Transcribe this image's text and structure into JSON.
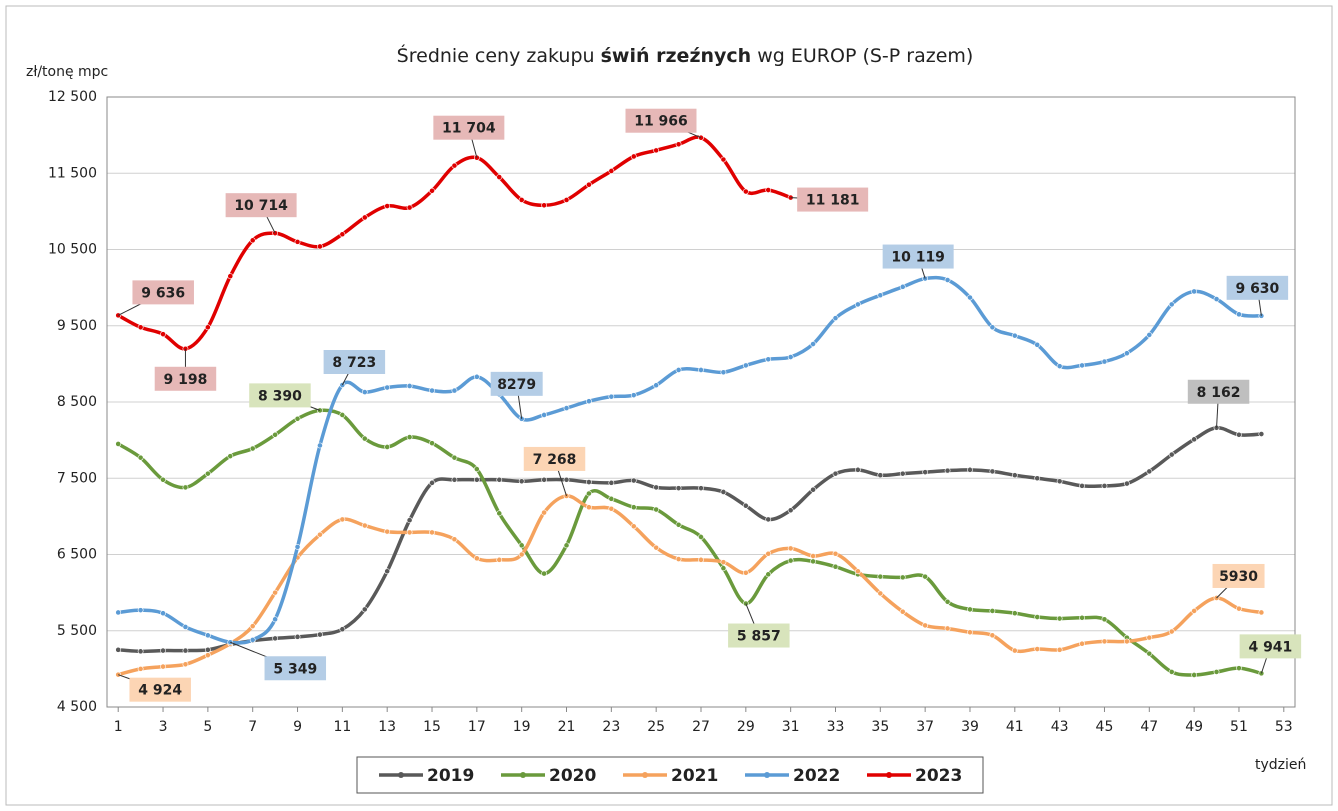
{
  "chart_data": {
    "type": "line",
    "title": [
      "Średnie ceny zakupu ",
      "świń rzeźnych",
      " wg EUROP (S-P razem)"
    ],
    "y_label": "zł/tonę mpc",
    "x_label": "tydzień",
    "x": [
      1,
      2,
      3,
      4,
      5,
      6,
      7,
      8,
      9,
      10,
      11,
      12,
      13,
      14,
      15,
      16,
      17,
      18,
      19,
      20,
      21,
      22,
      23,
      24,
      25,
      26,
      27,
      28,
      29,
      30,
      31,
      32,
      33,
      34,
      35,
      36,
      37,
      38,
      39,
      40,
      41,
      42,
      43,
      44,
      45,
      46,
      47,
      48,
      49,
      50,
      51,
      52
    ],
    "xlim": [
      0.5,
      53.5
    ],
    "xticks": [
      1,
      3,
      5,
      7,
      9,
      11,
      13,
      15,
      17,
      19,
      21,
      23,
      25,
      27,
      29,
      31,
      33,
      35,
      37,
      39,
      41,
      43,
      45,
      47,
      49,
      51,
      53
    ],
    "ylim": [
      4500,
      12500
    ],
    "yticks": [
      {
        "value": 4500,
        "label": "4 500"
      },
      {
        "value": 5500,
        "label": "5 500"
      },
      {
        "value": 6500,
        "label": "6 500"
      },
      {
        "value": 7500,
        "label": "7 500"
      },
      {
        "value": 8500,
        "label": "8 500"
      },
      {
        "value": 9500,
        "label": "9 500"
      },
      {
        "value": 10500,
        "label": "10 500"
      },
      {
        "value": 11500,
        "label": "11 500"
      },
      {
        "value": 12500,
        "label": "12 500"
      }
    ],
    "grid": true,
    "legend": "bottom",
    "series": [
      {
        "name": "2019",
        "color": "#595959",
        "label_fill": "#bfbfbf",
        "values": [
          5250,
          5230,
          5240,
          5240,
          5250,
          5320,
          5370,
          5400,
          5420,
          5450,
          5520,
          5780,
          6280,
          6950,
          7440,
          7480,
          7480,
          7480,
          7460,
          7480,
          7480,
          7450,
          7440,
          7470,
          7380,
          7370,
          7370,
          7320,
          7140,
          6960,
          7080,
          7350,
          7560,
          7610,
          7540,
          7560,
          7580,
          7600,
          7610,
          7590,
          7540,
          7500,
          7460,
          7400,
          7400,
          7430,
          7590,
          7810,
          8010,
          8162,
          8070,
          8080
        ],
        "value_labels": [
          null,
          null,
          null,
          null,
          null,
          null,
          null,
          null,
          null,
          null,
          null,
          null,
          null,
          null,
          null,
          null,
          null,
          null,
          null,
          null,
          null,
          null,
          null,
          null,
          null,
          null,
          null,
          null,
          null,
          null,
          null,
          null,
          null,
          null,
          null,
          null,
          null,
          null,
          null,
          null,
          null,
          null,
          null,
          null,
          null,
          null,
          null,
          null,
          null,
          "8 162",
          null,
          null
        ]
      },
      {
        "name": "2020",
        "color": "#6a9a3c",
        "label_fill": "#d8e4bc",
        "values": [
          7950,
          7770,
          7480,
          7380,
          7560,
          7790,
          7890,
          8070,
          8280,
          8390,
          8330,
          8020,
          7910,
          8040,
          7960,
          7770,
          7620,
          7040,
          6620,
          6250,
          6620,
          7300,
          7230,
          7120,
          7090,
          6890,
          6730,
          6320,
          5857,
          6240,
          6420,
          6410,
          6340,
          6240,
          6210,
          6200,
          6210,
          5880,
          5780,
          5760,
          5730,
          5680,
          5660,
          5670,
          5650,
          5410,
          5200,
          4960,
          4920,
          4960,
          5010,
          4941
        ],
        "value_labels": [
          null,
          null,
          null,
          null,
          null,
          null,
          null,
          null,
          null,
          "8 390",
          null,
          null,
          null,
          null,
          null,
          null,
          null,
          null,
          null,
          null,
          null,
          null,
          null,
          null,
          null,
          null,
          null,
          null,
          "5 857",
          null,
          null,
          null,
          null,
          null,
          null,
          null,
          null,
          null,
          null,
          null,
          null,
          null,
          null,
          null,
          null,
          null,
          null,
          null,
          null,
          null,
          null,
          "4 941"
        ]
      },
      {
        "name": "2021",
        "color": "#f5a25d",
        "label_fill": "#fcd5b4",
        "values": [
          4924,
          5000,
          5030,
          5060,
          5180,
          5330,
          5560,
          6000,
          6460,
          6760,
          6960,
          6880,
          6800,
          6790,
          6790,
          6700,
          6450,
          6430,
          6500,
          7050,
          7268,
          7120,
          7100,
          6870,
          6590,
          6440,
          6430,
          6400,
          6260,
          6510,
          6580,
          6480,
          6510,
          6280,
          5990,
          5750,
          5570,
          5530,
          5480,
          5440,
          5240,
          5260,
          5250,
          5330,
          5360,
          5360,
          5410,
          5490,
          5760,
          5930,
          5790,
          5740
        ],
        "value_labels": [
          "4 924",
          null,
          null,
          null,
          null,
          null,
          null,
          null,
          null,
          null,
          null,
          null,
          null,
          null,
          null,
          null,
          null,
          null,
          null,
          null,
          "7 268",
          null,
          null,
          null,
          null,
          null,
          null,
          null,
          null,
          null,
          null,
          null,
          null,
          null,
          null,
          null,
          null,
          null,
          null,
          null,
          null,
          null,
          null,
          null,
          null,
          null,
          null,
          null,
          null,
          "5930",
          null,
          null
        ]
      },
      {
        "name": "2022",
        "color": "#5b9bd5",
        "label_fill": "#b4cde6",
        "values": [
          5740,
          5770,
          5730,
          5550,
          5440,
          5349,
          5380,
          5650,
          6600,
          7930,
          8723,
          8630,
          8690,
          8710,
          8650,
          8650,
          8830,
          8600,
          8279,
          8330,
          8420,
          8510,
          8570,
          8590,
          8720,
          8920,
          8920,
          8890,
          8980,
          9060,
          9090,
          9260,
          9600,
          9780,
          9900,
          10010,
          10119,
          10100,
          9870,
          9480,
          9370,
          9250,
          8970,
          8980,
          9030,
          9140,
          9380,
          9780,
          9950,
          9850,
          9650,
          9630
        ],
        "value_labels": [
          null,
          null,
          null,
          null,
          null,
          "5 349",
          null,
          null,
          null,
          null,
          "8 723",
          null,
          null,
          null,
          null,
          null,
          null,
          null,
          "8279",
          null,
          null,
          null,
          null,
          null,
          null,
          null,
          null,
          null,
          null,
          null,
          null,
          null,
          null,
          null,
          null,
          null,
          "10 119",
          null,
          null,
          null,
          null,
          null,
          null,
          null,
          null,
          null,
          null,
          null,
          null,
          null,
          null,
          "9 630"
        ]
      },
      {
        "name": "2023",
        "color": "#e00000",
        "label_fill": "#e6b8b7",
        "values": [
          9636,
          9480,
          9390,
          9198,
          9480,
          10150,
          10620,
          10714,
          10600,
          10540,
          10700,
          10920,
          11070,
          11050,
          11270,
          11600,
          11704,
          11450,
          11150,
          11080,
          11150,
          11350,
          11530,
          11720,
          11800,
          11880,
          11966,
          11680,
          11260,
          11280,
          11181,
          null,
          null,
          null,
          null,
          null,
          null,
          null,
          null,
          null,
          null,
          null,
          null,
          null,
          null,
          null,
          null,
          null,
          null,
          null,
          null,
          null
        ],
        "value_labels": [
          "9 636",
          null,
          null,
          "9 198",
          null,
          null,
          null,
          "10 714",
          null,
          null,
          null,
          null,
          null,
          null,
          null,
          null,
          "11 704",
          null,
          null,
          null,
          null,
          null,
          null,
          null,
          null,
          null,
          "11 966",
          null,
          null,
          null,
          "11 181",
          null,
          null,
          null,
          null,
          null,
          null,
          null,
          null,
          null,
          null,
          null,
          null,
          null,
          null,
          null,
          null,
          null,
          null,
          null,
          null,
          null
        ]
      }
    ]
  }
}
